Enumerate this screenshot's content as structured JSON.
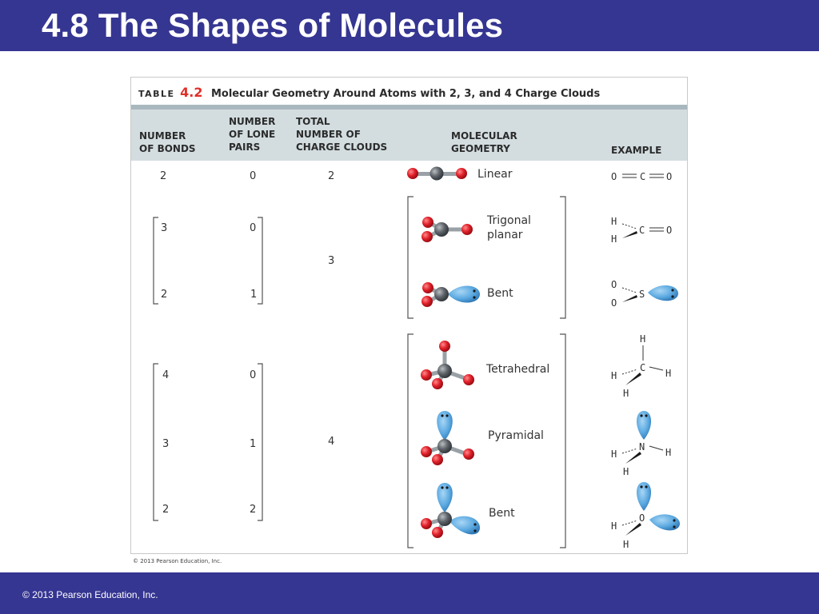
{
  "slide": {
    "title": "4.8 The Shapes of Molecules",
    "footer": "© 2013 Pearson Education, Inc."
  },
  "table": {
    "label": "TABLE",
    "number": "4.2",
    "caption": "Molecular Geometry Around Atoms with 2, 3, and 4 Charge Clouds",
    "headers": {
      "bonds": "NUMBER\nOF BONDS",
      "lone_pairs": "NUMBER\nOF LONE\nPAIRS",
      "clouds": "TOTAL\nNUMBER OF\nCHARGE CLOUDS",
      "geometry": "MOLECULAR\nGEOMETRY",
      "example": "EXAMPLE"
    },
    "rows": [
      {
        "bonds": "2",
        "lone_pairs": "0",
        "geometry": "Linear"
      },
      {
        "bonds": "3",
        "lone_pairs": "0",
        "geometry": "Trigonal\nplanar"
      },
      {
        "bonds": "2",
        "lone_pairs": "1",
        "geometry": "Bent"
      },
      {
        "bonds": "4",
        "lone_pairs": "0",
        "geometry": "Tetrahedral"
      },
      {
        "bonds": "3",
        "lone_pairs": "1",
        "geometry": "Pyramidal"
      },
      {
        "bonds": "2",
        "lone_pairs": "2",
        "geometry": "Bent"
      }
    ],
    "cloud_groups": [
      "2",
      "3",
      "4"
    ],
    "examples": {
      "co2": {
        "o1": "O",
        "c": "C",
        "o2": "O"
      },
      "h2co": {
        "h1": "H",
        "h2": "H",
        "c": "C",
        "o": "O"
      },
      "so2": {
        "o1": "O",
        "o2": "O",
        "s": "S"
      },
      "ch4": {
        "h_top": "H",
        "h_left": "H",
        "c": "C",
        "h_right": "H",
        "h_bottom": "H"
      },
      "nh3": {
        "h_left": "H",
        "n": "N",
        "h_right": "H",
        "h_bottom": "H"
      },
      "h2o": {
        "h_left": "H",
        "o": "O",
        "h_bottom": "H"
      }
    },
    "copyright": "© 2013 Pearson Education, Inc."
  },
  "colors": {
    "bar": "#353592",
    "header_band": "#d3dde0",
    "oxygen": "#e0202a",
    "carbon": "#5e6469",
    "lone_pair": "#5aa8e0",
    "table_number": "#e0302a"
  }
}
